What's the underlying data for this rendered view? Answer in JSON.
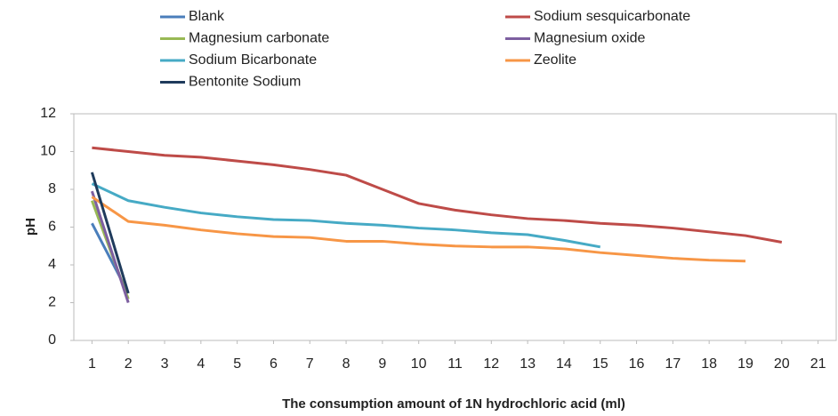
{
  "chart_data": {
    "type": "line",
    "xlabel": "The consumption amount of 1N hydrochloric acid (ml)",
    "ylabel": "pH",
    "x": [
      1,
      2,
      3,
      4,
      5,
      6,
      7,
      8,
      9,
      10,
      11,
      12,
      13,
      14,
      15,
      16,
      17,
      18,
      19,
      20
    ],
    "xlim": [
      0.5,
      21.5
    ],
    "xticks": [
      1,
      2,
      3,
      4,
      5,
      6,
      7,
      8,
      9,
      10,
      11,
      12,
      13,
      14,
      15,
      16,
      17,
      18,
      19,
      20,
      21
    ],
    "ylim": [
      0,
      12
    ],
    "yticks": [
      0,
      2,
      4,
      6,
      8,
      10,
      12
    ],
    "grid": false,
    "series": [
      {
        "name": "Blank",
        "color": "#4a7ebb",
        "values": [
          6.2,
          2.5,
          null,
          null,
          null,
          null,
          null,
          null,
          null,
          null,
          null,
          null,
          null,
          null,
          null,
          null,
          null,
          null,
          null,
          null
        ]
      },
      {
        "name": "Sodium sesquicarbonate",
        "color": "#be4b48",
        "values": [
          10.2,
          10.0,
          9.8,
          9.7,
          9.5,
          9.3,
          9.05,
          8.75,
          8.0,
          7.25,
          6.9,
          6.65,
          6.45,
          6.35,
          6.2,
          6.1,
          5.95,
          5.75,
          5.55,
          5.2
        ]
      },
      {
        "name": "Magnesium carbonate",
        "color": "#98b954",
        "values": [
          7.4,
          2.2,
          null,
          null,
          null,
          null,
          null,
          null,
          null,
          null,
          null,
          null,
          null,
          null,
          null,
          null,
          null,
          null,
          null,
          null
        ]
      },
      {
        "name": "Magnesium oxide",
        "color": "#7d5fa0",
        "values": [
          7.9,
          2.0,
          null,
          null,
          null,
          null,
          null,
          null,
          null,
          null,
          null,
          null,
          null,
          null,
          null,
          null,
          null,
          null,
          null,
          null
        ]
      },
      {
        "name": "Sodium Bicarbonate",
        "color": "#46aac5",
        "values": [
          8.3,
          7.4,
          7.05,
          6.75,
          6.55,
          6.4,
          6.35,
          6.2,
          6.1,
          5.95,
          5.85,
          5.7,
          5.6,
          5.3,
          4.95,
          null,
          null,
          null,
          null,
          null
        ]
      },
      {
        "name": "Zeolite",
        "color": "#f79646",
        "values": [
          7.6,
          6.3,
          6.1,
          5.85,
          5.65,
          5.5,
          5.45,
          5.25,
          5.25,
          5.1,
          5.0,
          4.95,
          4.95,
          4.85,
          4.65,
          4.5,
          4.35,
          4.25,
          4.2,
          null
        ]
      },
      {
        "name": "Bentonite Sodium",
        "color": "#1f3b5c",
        "values": [
          8.9,
          2.5,
          null,
          null,
          null,
          null,
          null,
          null,
          null,
          null,
          null,
          null,
          null,
          null,
          null,
          null,
          null,
          null,
          null,
          null
        ]
      }
    ]
  }
}
